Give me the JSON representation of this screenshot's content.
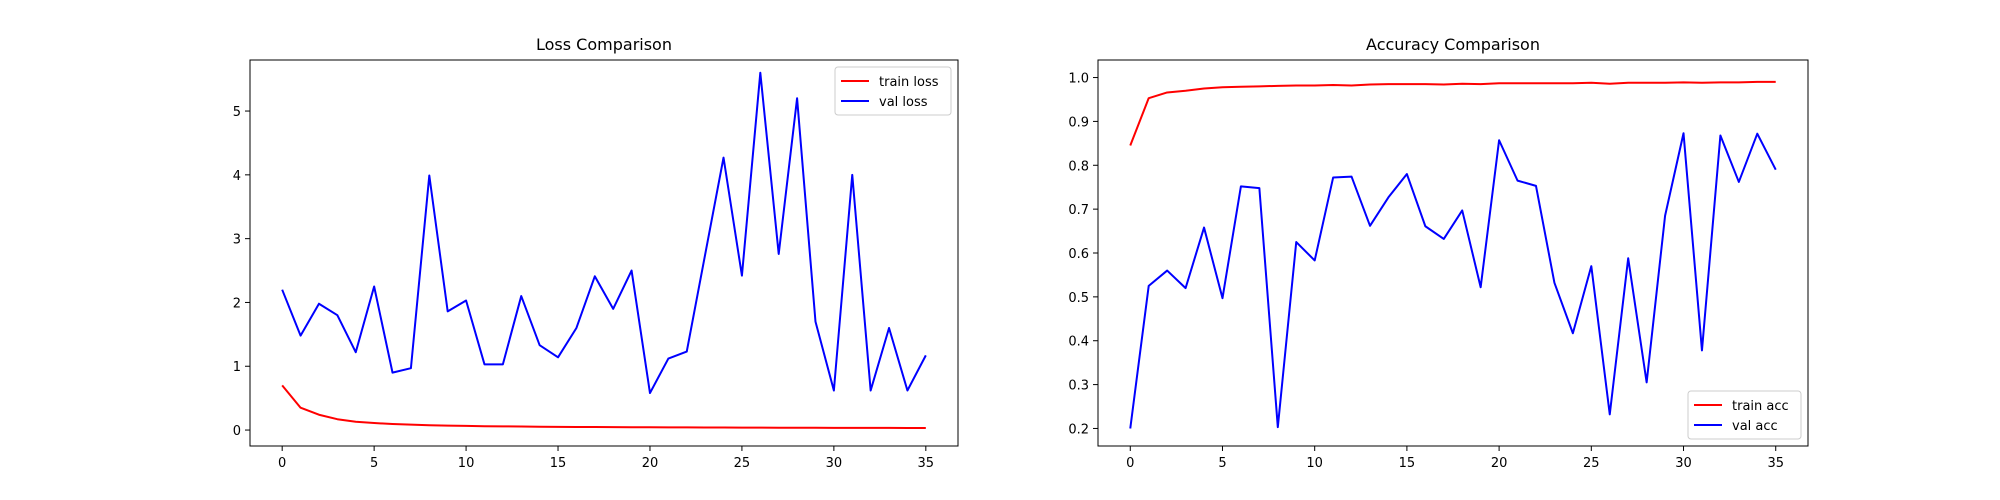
{
  "chart_data": [
    {
      "type": "line",
      "title": "Loss Comparison",
      "xlabel": "",
      "ylabel": "",
      "x": [
        0,
        1,
        2,
        3,
        4,
        5,
        6,
        7,
        8,
        9,
        10,
        11,
        12,
        13,
        14,
        15,
        16,
        17,
        18,
        19,
        20,
        21,
        22,
        23,
        24,
        25,
        26,
        27,
        28,
        29,
        30,
        31,
        32,
        33,
        34,
        35
      ],
      "xlim": [
        -1.75,
        36.75
      ],
      "ylim": [
        -0.25,
        5.8
      ],
      "xticks": [
        0,
        5,
        10,
        15,
        20,
        25,
        30,
        35
      ],
      "yticks": [
        0,
        1,
        2,
        3,
        4,
        5
      ],
      "legend_position": "upper right",
      "grid": false,
      "series": [
        {
          "name": "train loss",
          "color": "#ff0000",
          "values": [
            0.7,
            0.35,
            0.24,
            0.17,
            0.13,
            0.11,
            0.095,
            0.085,
            0.075,
            0.07,
            0.065,
            0.06,
            0.058,
            0.055,
            0.052,
            0.05,
            0.048,
            0.047,
            0.045,
            0.044,
            0.043,
            0.042,
            0.041,
            0.04,
            0.039,
            0.038,
            0.038,
            0.037,
            0.036,
            0.036,
            0.035,
            0.035,
            0.034,
            0.034,
            0.033,
            0.033
          ]
        },
        {
          "name": "val loss",
          "color": "#0000ff",
          "values": [
            2.2,
            1.48,
            1.98,
            1.8,
            1.22,
            2.25,
            0.9,
            0.97,
            3.99,
            1.86,
            2.03,
            1.03,
            1.03,
            2.1,
            1.33,
            1.14,
            1.6,
            2.41,
            1.9,
            2.5,
            0.58,
            1.12,
            1.23,
            2.75,
            4.27,
            2.42,
            5.6,
            2.76,
            5.2,
            1.7,
            0.62,
            4.0,
            0.62,
            1.6,
            0.62,
            1.17
          ]
        }
      ]
    },
    {
      "type": "line",
      "title": "Accuracy Comparison",
      "xlabel": "",
      "ylabel": "",
      "x": [
        0,
        1,
        2,
        3,
        4,
        5,
        6,
        7,
        8,
        9,
        10,
        11,
        12,
        13,
        14,
        15,
        16,
        17,
        18,
        19,
        20,
        21,
        22,
        23,
        24,
        25,
        26,
        27,
        28,
        29,
        30,
        31,
        32,
        33,
        34,
        35
      ],
      "xlim": [
        -1.75,
        36.75
      ],
      "ylim": [
        0.16,
        1.04
      ],
      "xticks": [
        0,
        5,
        10,
        15,
        20,
        25,
        30,
        35
      ],
      "yticks": [
        0.2,
        0.3,
        0.4,
        0.5,
        0.6,
        0.7,
        0.8,
        0.9,
        1.0
      ],
      "ytick_labels": [
        "0.2",
        "0.3",
        "0.4",
        "0.5",
        "0.6",
        "0.7",
        "0.8",
        "0.9",
        "1.0"
      ],
      "legend_position": "lower right",
      "grid": false,
      "series": [
        {
          "name": "train acc",
          "color": "#ff0000",
          "values": [
            0.845,
            0.953,
            0.966,
            0.97,
            0.975,
            0.978,
            0.979,
            0.98,
            0.981,
            0.982,
            0.982,
            0.983,
            0.982,
            0.984,
            0.985,
            0.985,
            0.985,
            0.984,
            0.986,
            0.985,
            0.987,
            0.987,
            0.987,
            0.987,
            0.987,
            0.988,
            0.986,
            0.988,
            0.988,
            0.988,
            0.989,
            0.988,
            0.989,
            0.989,
            0.99,
            0.99
          ]
        },
        {
          "name": "val acc",
          "color": "#0000ff",
          "values": [
            0.2,
            0.525,
            0.56,
            0.52,
            0.658,
            0.497,
            0.752,
            0.748,
            0.203,
            0.625,
            0.583,
            0.772,
            0.774,
            0.662,
            0.727,
            0.78,
            0.661,
            0.632,
            0.697,
            0.522,
            0.857,
            0.765,
            0.753,
            0.532,
            0.417,
            0.57,
            0.232,
            0.588,
            0.305,
            0.685,
            0.873,
            0.378,
            0.868,
            0.762,
            0.872,
            0.79
          ]
        }
      ]
    }
  ]
}
